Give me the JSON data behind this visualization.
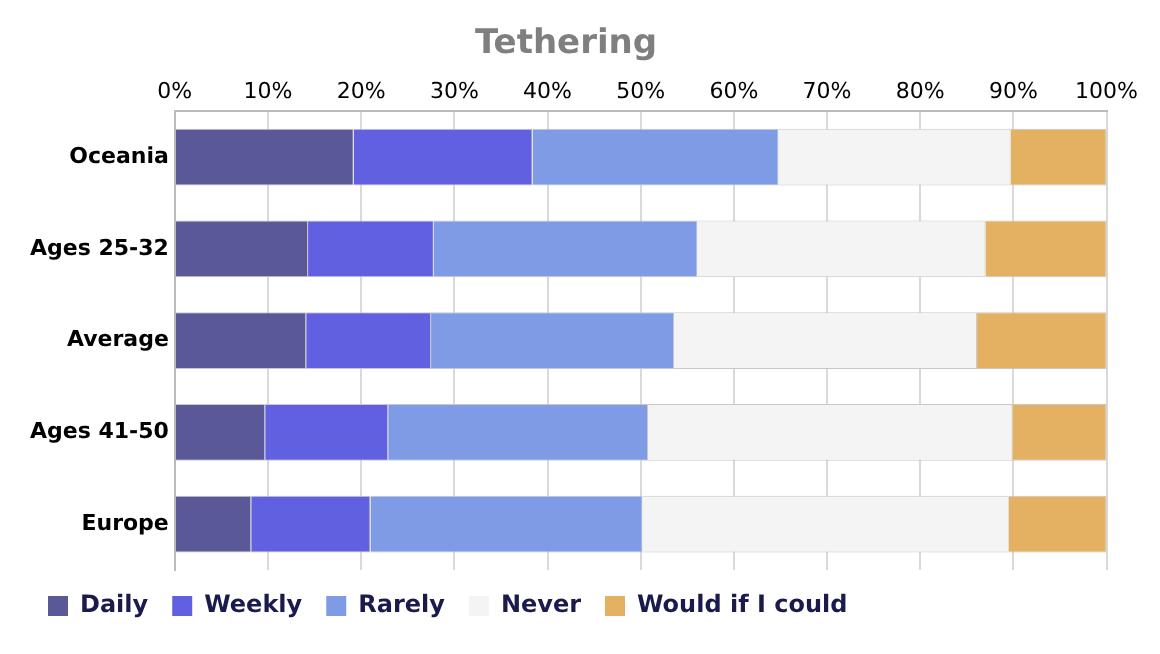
{
  "chart_data": {
    "type": "bar",
    "orientation": "horizontal",
    "stacked": true,
    "title": "Tethering",
    "categories": [
      "Oceania",
      "Ages 25-32",
      "Average",
      "Ages 41-50",
      "Europe"
    ],
    "series": [
      {
        "name": "Daily",
        "color": "#5a5896",
        "values": [
          19.2,
          14.3,
          14.1,
          9.7,
          8.2
        ]
      },
      {
        "name": "Weekly",
        "color": "#6060e0",
        "values": [
          19.2,
          13.5,
          13.4,
          13.2,
          12.8
        ]
      },
      {
        "name": "Rarely",
        "color": "#7f9be6",
        "values": [
          26.4,
          28.3,
          26.1,
          27.9,
          29.2
        ]
      },
      {
        "name": "Never",
        "color": "#f4f4f4",
        "values": [
          24.9,
          30.9,
          32.5,
          39.1,
          39.3
        ]
      },
      {
        "name": "Would if I could",
        "color": "#e4b062",
        "values": [
          10.3,
          13.0,
          13.9,
          10.1,
          10.5
        ]
      }
    ],
    "xlim": [
      0,
      100
    ],
    "xticks": [
      {
        "value": 0,
        "label": "0%"
      },
      {
        "value": 10,
        "label": "10%"
      },
      {
        "value": 20,
        "label": "20%"
      },
      {
        "value": 30,
        "label": "30%"
      },
      {
        "value": 40,
        "label": "40%"
      },
      {
        "value": 50,
        "label": "50%"
      },
      {
        "value": 60,
        "label": "60%"
      },
      {
        "value": 70,
        "label": "70%"
      },
      {
        "value": 80,
        "label": "80%"
      },
      {
        "value": 90,
        "label": "90%"
      },
      {
        "value": 100,
        "label": "100%"
      }
    ],
    "grid": "x",
    "legend": "bottom left"
  }
}
